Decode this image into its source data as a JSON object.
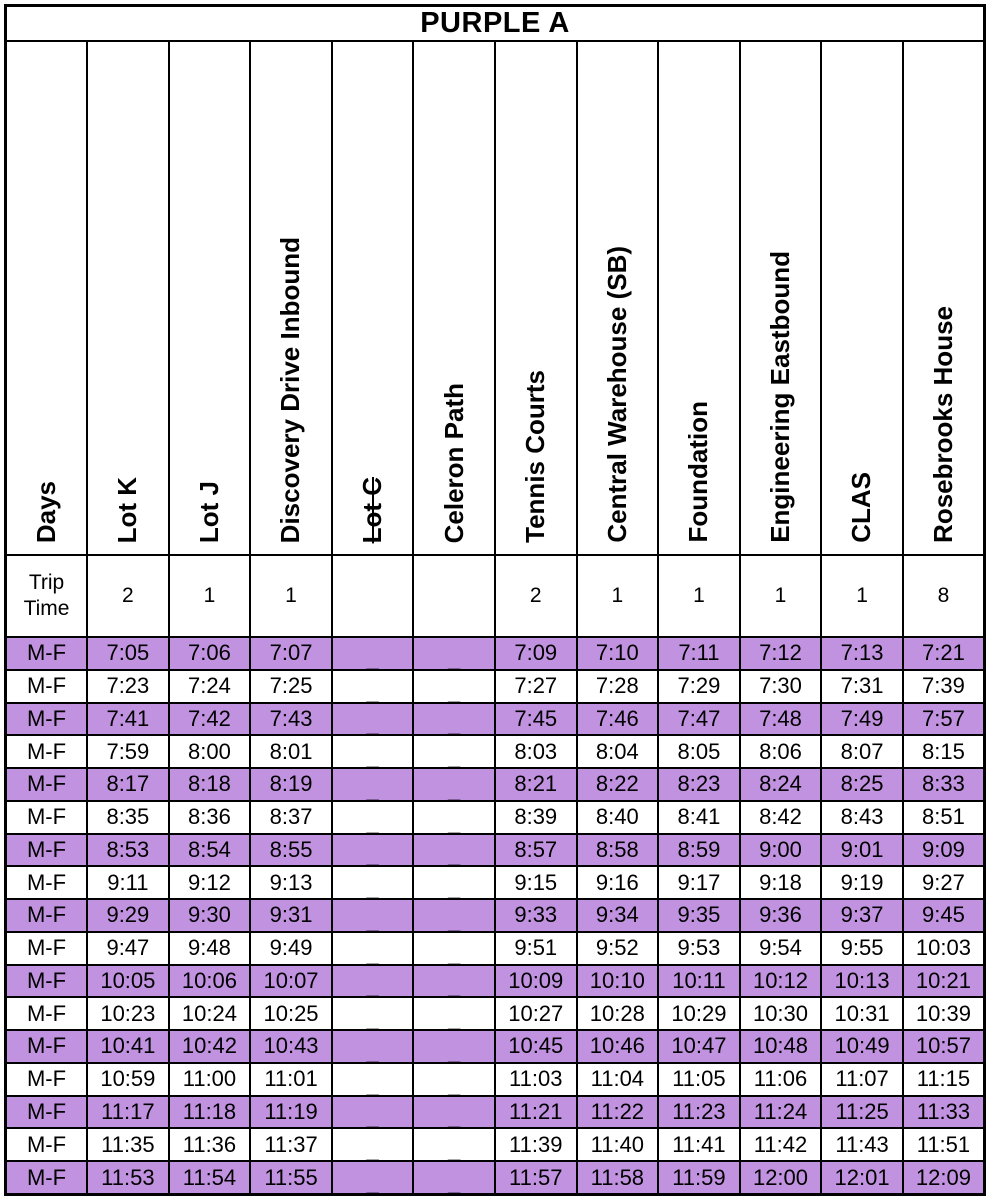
{
  "title": "PURPLE A",
  "colors": {
    "highlight": "#C192E0",
    "border": "#000000",
    "background": "#FFFFFF"
  },
  "table": {
    "columns": [
      {
        "label": "Days",
        "strikethrough": false
      },
      {
        "label": "Lot K",
        "strikethrough": false
      },
      {
        "label": "Lot J",
        "strikethrough": false
      },
      {
        "label": "Discovery Drive Inbound",
        "strikethrough": false
      },
      {
        "label": "Lot C",
        "strikethrough": true
      },
      {
        "label": "Celeron Path",
        "strikethrough": false
      },
      {
        "label": "Tennis Courts",
        "strikethrough": false
      },
      {
        "label": "Central Warehouse (SB)",
        "strikethrough": false
      },
      {
        "label": "Foundation",
        "strikethrough": false
      },
      {
        "label": "Engineering Eastbound",
        "strikethrough": false
      },
      {
        "label": "CLAS",
        "strikethrough": false
      },
      {
        "label": "Rosebrooks House",
        "strikethrough": false
      }
    ],
    "trip_time": {
      "label": "Trip Time",
      "values": [
        "2",
        "1",
        "1",
        "",
        "",
        "2",
        "1",
        "1",
        "1",
        "1",
        "8"
      ]
    },
    "rows": [
      {
        "days": "M-F",
        "times": [
          "7:05",
          "7:06",
          "7:07",
          "_",
          "_",
          "7:09",
          "7:10",
          "7:11",
          "7:12",
          "7:13",
          "7:21"
        ]
      },
      {
        "days": "M-F",
        "times": [
          "7:23",
          "7:24",
          "7:25",
          "_",
          "_",
          "7:27",
          "7:28",
          "7:29",
          "7:30",
          "7:31",
          "7:39"
        ]
      },
      {
        "days": "M-F",
        "times": [
          "7:41",
          "7:42",
          "7:43",
          "_",
          "_",
          "7:45",
          "7:46",
          "7:47",
          "7:48",
          "7:49",
          "7:57"
        ]
      },
      {
        "days": "M-F",
        "times": [
          "7:59",
          "8:00",
          "8:01",
          "_",
          "_",
          "8:03",
          "8:04",
          "8:05",
          "8:06",
          "8:07",
          "8:15"
        ]
      },
      {
        "days": "M-F",
        "times": [
          "8:17",
          "8:18",
          "8:19",
          "_",
          "_",
          "8:21",
          "8:22",
          "8:23",
          "8:24",
          "8:25",
          "8:33"
        ]
      },
      {
        "days": "M-F",
        "times": [
          "8:35",
          "8:36",
          "8:37",
          "_",
          "_",
          "8:39",
          "8:40",
          "8:41",
          "8:42",
          "8:43",
          "8:51"
        ]
      },
      {
        "days": "M-F",
        "times": [
          "8:53",
          "8:54",
          "8:55",
          "_",
          "_",
          "8:57",
          "8:58",
          "8:59",
          "9:00",
          "9:01",
          "9:09"
        ]
      },
      {
        "days": "M-F",
        "times": [
          "9:11",
          "9:12",
          "9:13",
          "_",
          "_",
          "9:15",
          "9:16",
          "9:17",
          "9:18",
          "9:19",
          "9:27"
        ]
      },
      {
        "days": "M-F",
        "times": [
          "9:29",
          "9:30",
          "9:31",
          "_",
          "_",
          "9:33",
          "9:34",
          "9:35",
          "9:36",
          "9:37",
          "9:45"
        ]
      },
      {
        "days": "M-F",
        "times": [
          "9:47",
          "9:48",
          "9:49",
          "_",
          "_",
          "9:51",
          "9:52",
          "9:53",
          "9:54",
          "9:55",
          "10:03"
        ]
      },
      {
        "days": "M-F",
        "times": [
          "10:05",
          "10:06",
          "10:07",
          "_",
          "_",
          "10:09",
          "10:10",
          "10:11",
          "10:12",
          "10:13",
          "10:21"
        ]
      },
      {
        "days": "M-F",
        "times": [
          "10:23",
          "10:24",
          "10:25",
          "_",
          "_",
          "10:27",
          "10:28",
          "10:29",
          "10:30",
          "10:31",
          "10:39"
        ]
      },
      {
        "days": "M-F",
        "times": [
          "10:41",
          "10:42",
          "10:43",
          "_",
          "_",
          "10:45",
          "10:46",
          "10:47",
          "10:48",
          "10:49",
          "10:57"
        ]
      },
      {
        "days": "M-F",
        "times": [
          "10:59",
          "11:00",
          "11:01",
          "_",
          "_",
          "11:03",
          "11:04",
          "11:05",
          "11:06",
          "11:07",
          "11:15"
        ]
      },
      {
        "days": "M-F",
        "times": [
          "11:17",
          "11:18",
          "11:19",
          "_",
          "_",
          "11:21",
          "11:22",
          "11:23",
          "11:24",
          "11:25",
          "11:33"
        ]
      },
      {
        "days": "M-F",
        "times": [
          "11:35",
          "11:36",
          "11:37",
          "_",
          "_",
          "11:39",
          "11:40",
          "11:41",
          "11:42",
          "11:43",
          "11:51"
        ]
      },
      {
        "days": "M-F",
        "times": [
          "11:53",
          "11:54",
          "11:55",
          "_",
          "_",
          "11:57",
          "11:58",
          "11:59",
          "12:00",
          "12:01",
          "12:09"
        ]
      }
    ]
  }
}
